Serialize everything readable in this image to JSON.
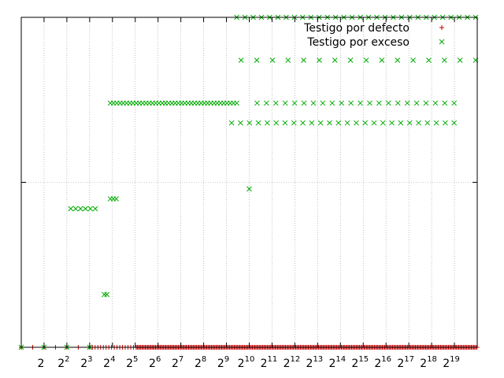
{
  "chart_data": {
    "type": "scatter",
    "x_scale": "log2",
    "grid": true,
    "legend_position": "top-right",
    "x_ticks": [
      {
        "value": 2,
        "base": "2",
        "exp": ""
      },
      {
        "value": 4,
        "base": "2",
        "exp": "2"
      },
      {
        "value": 8,
        "base": "2",
        "exp": "3"
      },
      {
        "value": 16,
        "base": "2",
        "exp": "4"
      },
      {
        "value": 32,
        "base": "2",
        "exp": "5"
      },
      {
        "value": 64,
        "base": "2",
        "exp": "6"
      },
      {
        "value": 128,
        "base": "2",
        "exp": "7"
      },
      {
        "value": 256,
        "base": "2",
        "exp": "8"
      },
      {
        "value": 512,
        "base": "2",
        "exp": "9"
      },
      {
        "value": 1024,
        "base": "2",
        "exp": "10"
      },
      {
        "value": 2048,
        "base": "2",
        "exp": "11"
      },
      {
        "value": 4096,
        "base": "2",
        "exp": "12"
      },
      {
        "value": 8192,
        "base": "2",
        "exp": "13"
      },
      {
        "value": 16384,
        "base": "2",
        "exp": "14"
      },
      {
        "value": 32768,
        "base": "2",
        "exp": "15"
      },
      {
        "value": 65536,
        "base": "2",
        "exp": "16"
      },
      {
        "value": 131072,
        "base": "2",
        "exp": "17"
      },
      {
        "value": 262144,
        "base": "2",
        "exp": "18"
      },
      {
        "value": 524288,
        "base": "2",
        "exp": "19"
      }
    ],
    "x_range": [
      1,
      1048576
    ],
    "y_range": [
      0,
      1
    ],
    "series": [
      {
        "name": "Testigo por defecto",
        "marker": "+",
        "color": "#cc0000",
        "points": [
          {
            "x_from": 1,
            "x_to": 1048576,
            "y": 0
          }
        ]
      },
      {
        "name": "Testigo por exceso",
        "marker": "x",
        "color": "#00aa00",
        "points": [
          {
            "x_from": 1,
            "x_to": 8,
            "y": 0,
            "count": 4
          },
          {
            "x_from": 4.5,
            "x_to": 9.5,
            "y": 0.42,
            "count": 6
          },
          {
            "x_from": 15,
            "x_to": 18,
            "y": 0.45,
            "count": 3
          },
          {
            "x_from": 12.5,
            "x_to": 13.5,
            "y": 0.16,
            "count": 2
          },
          {
            "x_from": 1024,
            "x_to": 1024,
            "y": 0.48,
            "count": 1
          },
          {
            "x_from": 15,
            "x_to": 700,
            "y": 0.74,
            "count": 40
          },
          {
            "x_from": 1300,
            "x_to": 520000,
            "y": 0.74,
            "count": 22
          },
          {
            "x_from": 600,
            "x_to": 520000,
            "y": 0.68,
            "count": 26
          },
          {
            "x_from": 800,
            "x_to": 1000000,
            "y": 0.87,
            "count": 16
          },
          {
            "x_from": 700,
            "x_to": 1000000,
            "y": 1.0,
            "count": 30
          }
        ]
      }
    ]
  }
}
